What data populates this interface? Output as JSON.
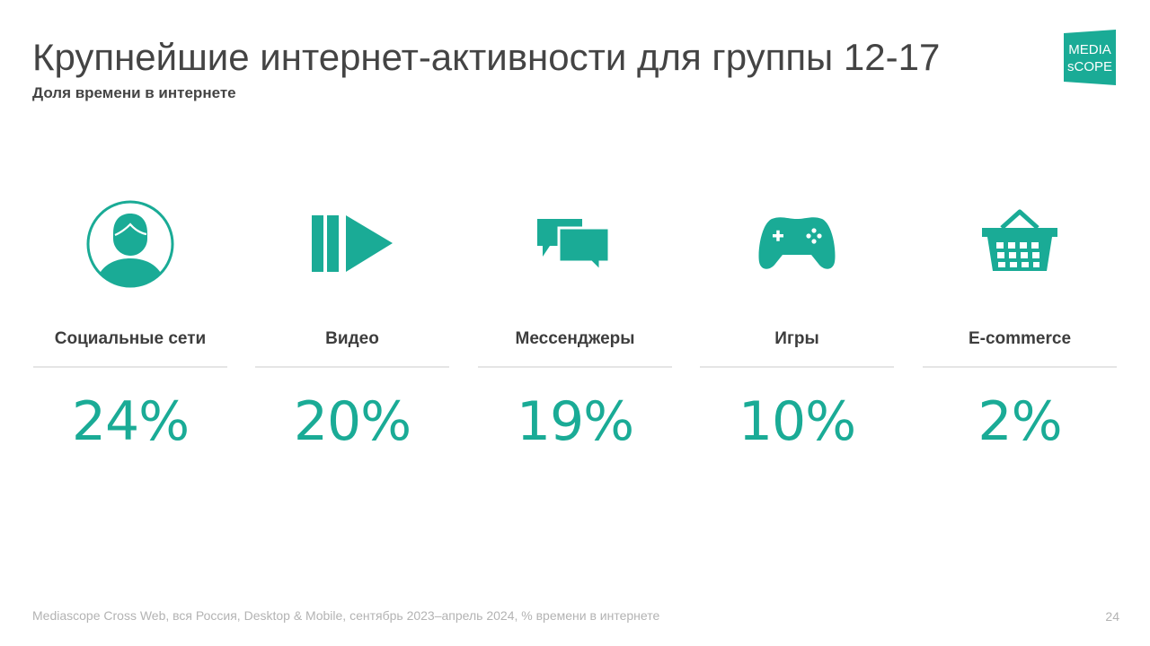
{
  "title": "Крупнейшие интернет-активности для группы 12-17",
  "subtitle": "Доля времени в интернете",
  "logo": {
    "line1": "MEDIA",
    "line2": "sCOPE",
    "color": "#1aab96"
  },
  "accent_color": "#1aab96",
  "activities": [
    {
      "icon": "person-icon",
      "label": "Социальные сети",
      "value": "24%"
    },
    {
      "icon": "play-icon",
      "label": "Видео",
      "value": "20%"
    },
    {
      "icon": "chat-bubbles-icon",
      "label": "Мессенджеры",
      "value": "19%"
    },
    {
      "icon": "gamepad-icon",
      "label": "Игры",
      "value": "10%"
    },
    {
      "icon": "shopping-basket-icon",
      "label": "E-commerce",
      "value": "2%"
    }
  ],
  "footer": {
    "source": "Mediascope Cross Web, вся Россия, Desktop & Mobile, сентябрь 2023–апрель 2024, % времени в интернете",
    "page_number": "24"
  }
}
